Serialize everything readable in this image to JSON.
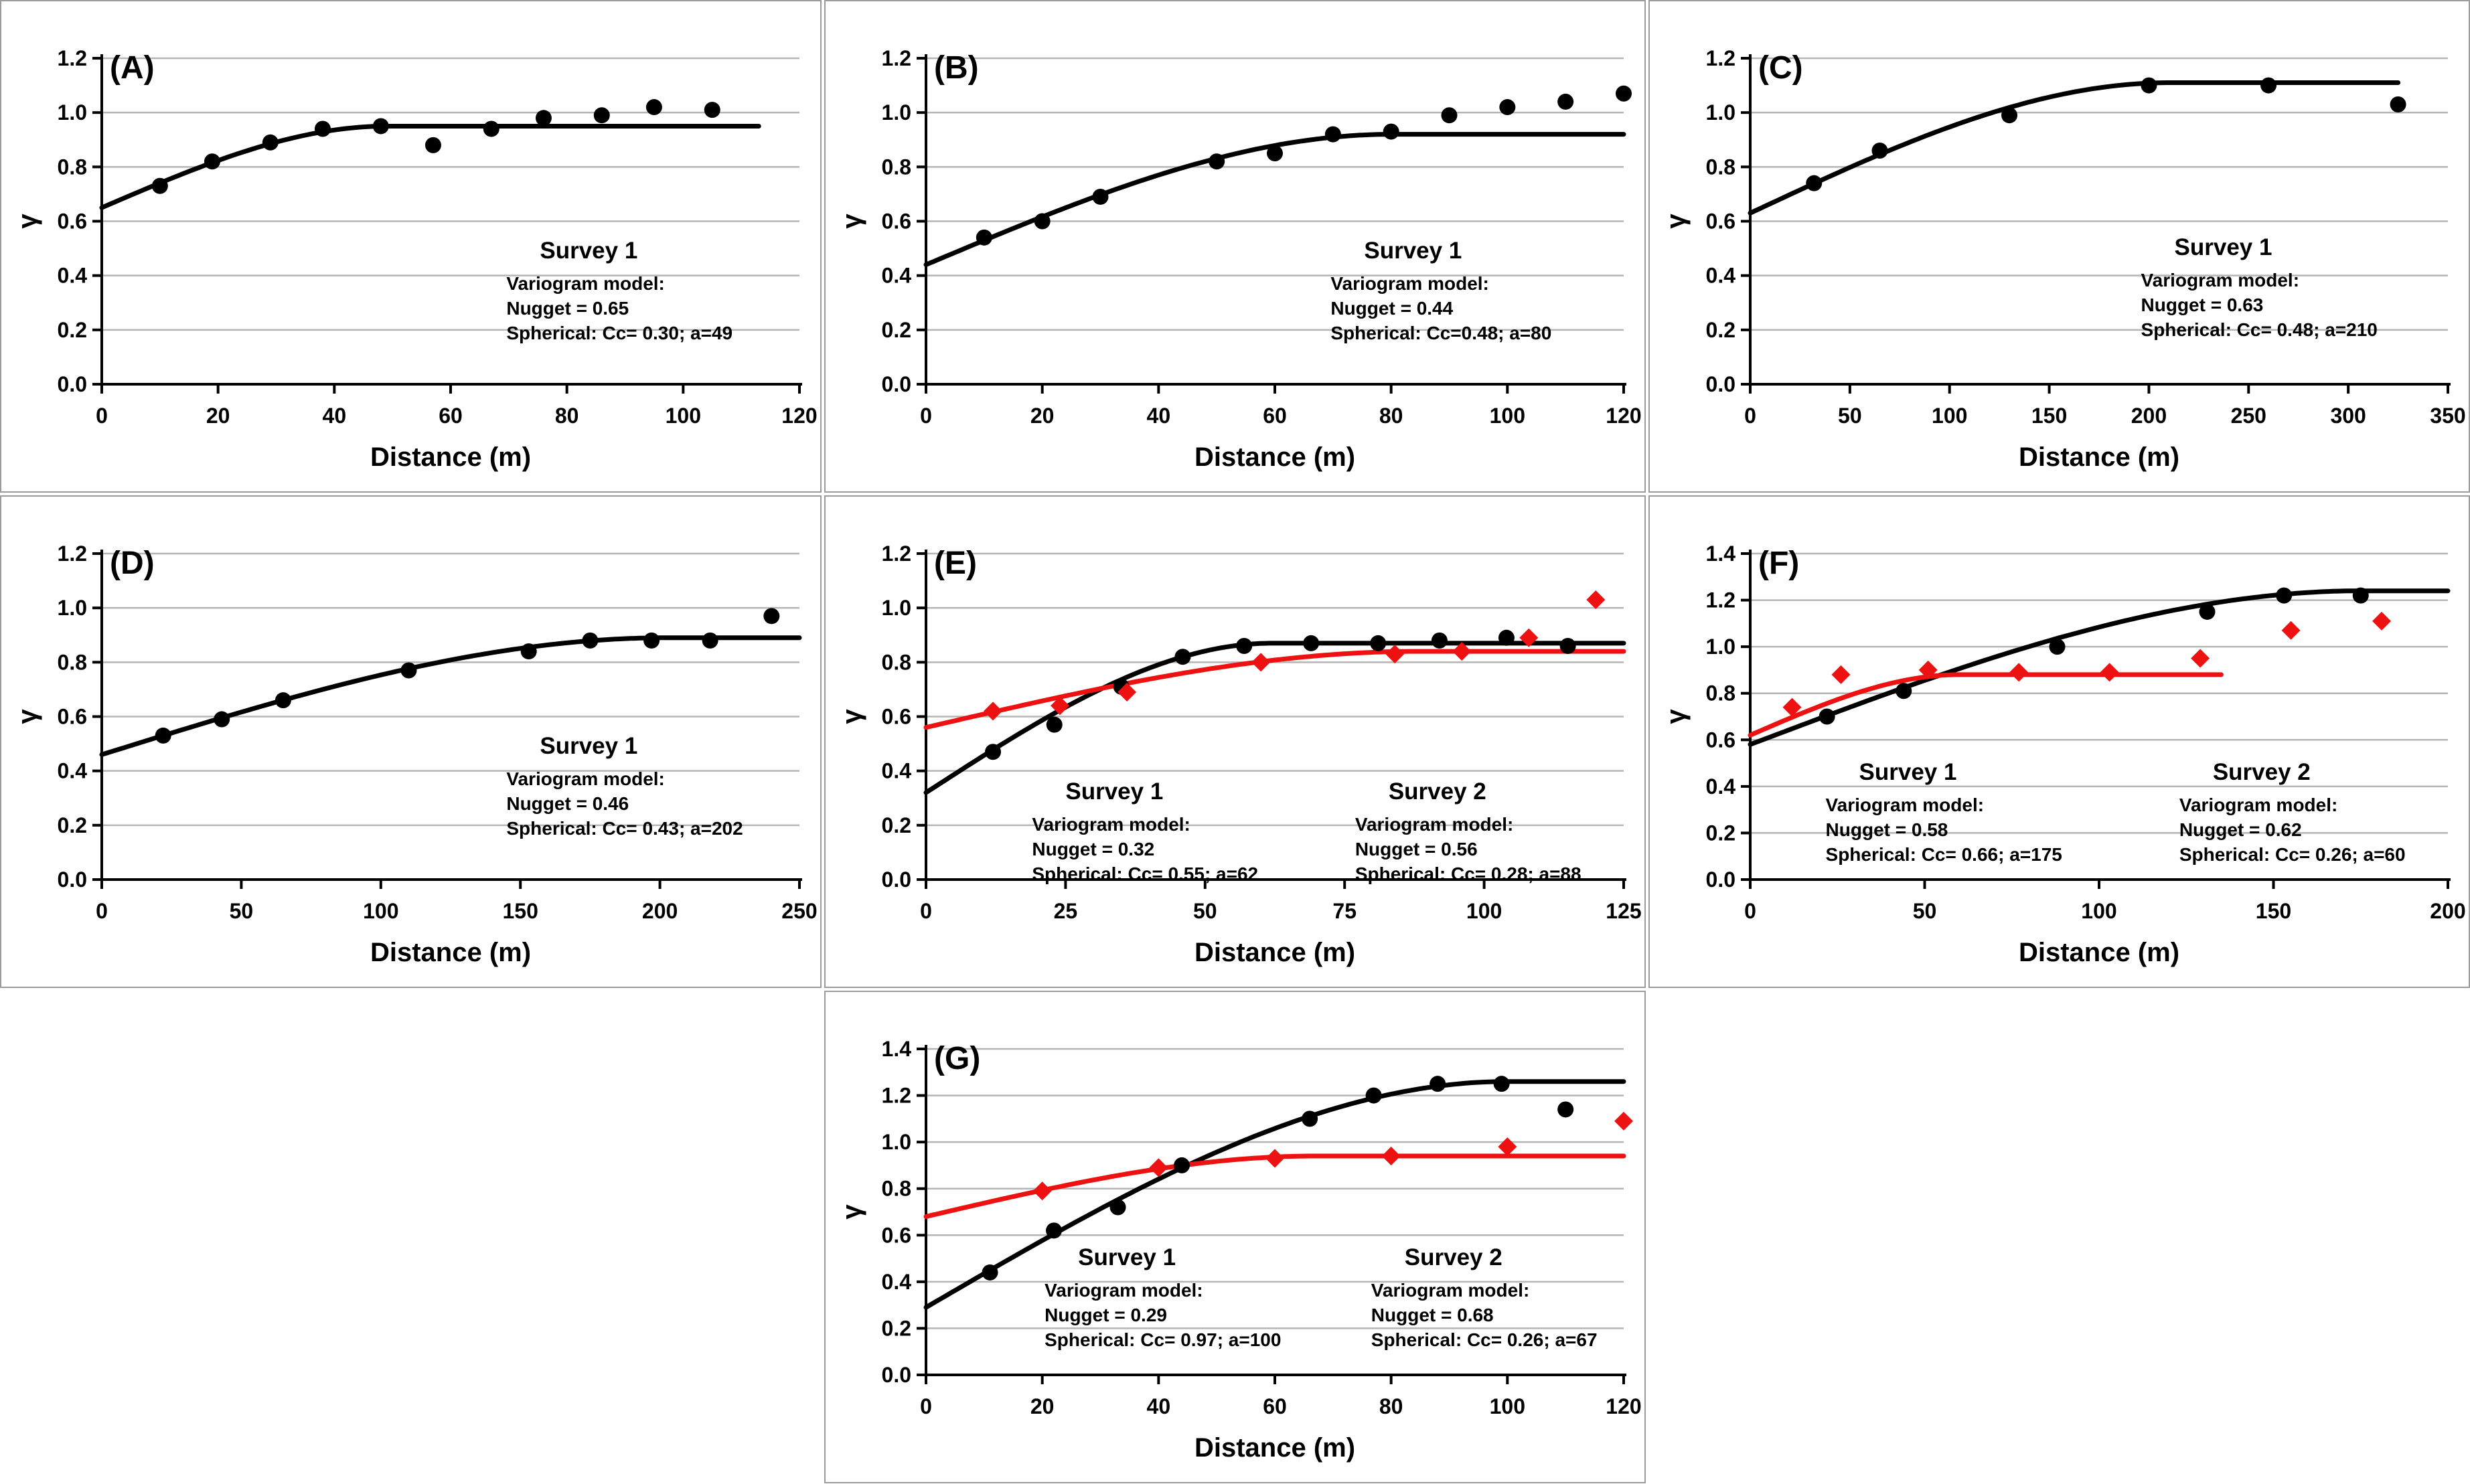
{
  "figure": {
    "background": "#ffffff",
    "panel_border_color": "#9b9b9b",
    "grid_color": "#b5b5b5",
    "axis_color": "#000000",
    "series_black": "#000000",
    "series_red": "#ee1111"
  },
  "chart_data": {
    "type": "scatter",
    "note": "variogram panels, spherical models; grid on (horizontal only)",
    "panels": [
      {
        "id": "a",
        "label": "(A)",
        "row": 1,
        "col": 1,
        "xlabel": "Distance (m)",
        "ylabel": "γ",
        "xlim": [
          0,
          120
        ],
        "ylim": [
          0,
          1.2
        ],
        "xticklabels": [
          "0",
          "20",
          "40",
          "60",
          "80",
          "100",
          "120"
        ],
        "yticklabels": [
          "0.0",
          "0.2",
          "0.4",
          "0.6",
          "0.8",
          "1.0",
          "1.2"
        ],
        "series": [
          {
            "name": "Survey 1",
            "color": "#000000",
            "marker": "circle",
            "model": {
              "nugget": 0.65,
              "cc": 0.3,
              "a": 49,
              "curve_end": 113
            },
            "points": [
              [
                10,
                0.73
              ],
              [
                19,
                0.82
              ],
              [
                29,
                0.89
              ],
              [
                38,
                0.94
              ],
              [
                48,
                0.95
              ],
              [
                57,
                0.88
              ],
              [
                67,
                0.94
              ],
              [
                76,
                0.98
              ],
              [
                86,
                0.99
              ],
              [
                95,
                1.02
              ],
              [
                105,
                1.01
              ]
            ]
          }
        ],
        "annotations": [
          {
            "title": "Survey 1",
            "lines": [
              "Variogram model:",
              "Nugget = 0.65",
              "Spherical: Cc= 0.30; a=49"
            ],
            "left": 0.58,
            "top": 0.55
          }
        ]
      },
      {
        "id": "b",
        "label": "(B)",
        "row": 1,
        "col": 2,
        "xlabel": "Distance (m)",
        "ylabel": "γ",
        "xlim": [
          0,
          120
        ],
        "ylim": [
          0,
          1.2
        ],
        "xticklabels": [
          "0",
          "20",
          "40",
          "60",
          "80",
          "100",
          "120"
        ],
        "yticklabels": [
          "0.0",
          "0.2",
          "0.4",
          "0.6",
          "0.8",
          "1.0",
          "1.2"
        ],
        "series": [
          {
            "name": "Survey 1",
            "color": "#000000",
            "marker": "circle",
            "model": {
              "nugget": 0.44,
              "cc": 0.48,
              "a": 80,
              "curve_end": 120
            },
            "points": [
              [
                10,
                0.54
              ],
              [
                20,
                0.6
              ],
              [
                30,
                0.69
              ],
              [
                50,
                0.82
              ],
              [
                60,
                0.85
              ],
              [
                70,
                0.92
              ],
              [
                80,
                0.93
              ],
              [
                90,
                0.99
              ],
              [
                100,
                1.02
              ],
              [
                110,
                1.04
              ],
              [
                120,
                1.07
              ]
            ]
          }
        ],
        "annotations": [
          {
            "title": "Survey 1",
            "lines": [
              "Variogram model:",
              "Nugget = 0.44",
              "Spherical: Cc=0.48; a=80"
            ],
            "left": 0.58,
            "top": 0.55
          }
        ]
      },
      {
        "id": "c",
        "label": "(C)",
        "row": 1,
        "col": 3,
        "xlabel": "Distance (m)",
        "ylabel": "γ",
        "xlim": [
          0,
          350
        ],
        "ylim": [
          0,
          1.2
        ],
        "xticklabels": [
          "0",
          "50",
          "100",
          "150",
          "200",
          "250",
          "300",
          "350"
        ],
        "yticklabels": [
          "0.0",
          "0.2",
          "0.4",
          "0.6",
          "0.8",
          "1.0",
          "1.2"
        ],
        "series": [
          {
            "name": "Survey 1",
            "color": "#000000",
            "marker": "circle",
            "model": {
              "nugget": 0.63,
              "cc": 0.48,
              "a": 210,
              "curve_end": 325
            },
            "points": [
              [
                32,
                0.74
              ],
              [
                65,
                0.86
              ],
              [
                130,
                0.99
              ],
              [
                200,
                1.1
              ],
              [
                260,
                1.1
              ],
              [
                325,
                1.03
              ]
            ]
          }
        ],
        "annotations": [
          {
            "title": "Survey 1",
            "lines": [
              "Variogram model:",
              "Nugget = 0.63",
              "Spherical: Cc= 0.48; a=210"
            ],
            "left": 0.56,
            "top": 0.54
          }
        ]
      },
      {
        "id": "d",
        "label": "(D)",
        "row": 2,
        "col": 1,
        "xlabel": "Distance (m)",
        "ylabel": "γ",
        "xlim": [
          0,
          250
        ],
        "ylim": [
          0,
          1.2
        ],
        "xticklabels": [
          "0",
          "50",
          "100",
          "150",
          "200",
          "250"
        ],
        "yticklabels": [
          "0.0",
          "0.2",
          "0.4",
          "0.6",
          "0.8",
          "1.0",
          "1.2"
        ],
        "series": [
          {
            "name": "Survey 1",
            "color": "#000000",
            "marker": "circle",
            "model": {
              "nugget": 0.46,
              "cc": 0.43,
              "a": 202,
              "curve_end": 250
            },
            "points": [
              [
                22,
                0.53
              ],
              [
                43,
                0.59
              ],
              [
                65,
                0.66
              ],
              [
                110,
                0.77
              ],
              [
                153,
                0.84
              ],
              [
                175,
                0.88
              ],
              [
                197,
                0.88
              ],
              [
                218,
                0.88
              ],
              [
                240,
                0.97
              ]
            ]
          }
        ],
        "annotations": [
          {
            "title": "Survey 1",
            "lines": [
              "Variogram model:",
              "Nugget = 0.46",
              "Spherical: Cc= 0.43; a=202"
            ],
            "left": 0.58,
            "top": 0.55
          }
        ]
      },
      {
        "id": "e",
        "label": "(E)",
        "row": 2,
        "col": 2,
        "xlabel": "Distance (m)",
        "ylabel": "γ",
        "xlim": [
          0,
          125
        ],
        "ylim": [
          0,
          1.2
        ],
        "xticklabels": [
          "0",
          "25",
          "50",
          "75",
          "100",
          "125"
        ],
        "yticklabels": [
          "0.0",
          "0.2",
          "0.4",
          "0.6",
          "0.8",
          "1.0",
          "1.2"
        ],
        "series": [
          {
            "name": "Survey 1",
            "color": "#000000",
            "marker": "circle",
            "model": {
              "nugget": 0.32,
              "cc": 0.55,
              "a": 62,
              "curve_end": 125
            },
            "points": [
              [
                12,
                0.47
              ],
              [
                23,
                0.57
              ],
              [
                35,
                0.71
              ],
              [
                46,
                0.82
              ],
              [
                57,
                0.86
              ],
              [
                69,
                0.87
              ],
              [
                81,
                0.87
              ],
              [
                92,
                0.88
              ],
              [
                104,
                0.89
              ],
              [
                115,
                0.86
              ]
            ]
          },
          {
            "name": "Survey 2",
            "color": "#ee1111",
            "marker": "diamond",
            "model": {
              "nugget": 0.56,
              "cc": 0.28,
              "a": 88,
              "curve_end": 125
            },
            "points": [
              [
                12,
                0.62
              ],
              [
                24,
                0.64
              ],
              [
                36,
                0.69
              ],
              [
                60,
                0.8
              ],
              [
                84,
                0.83
              ],
              [
                96,
                0.84
              ],
              [
                108,
                0.89
              ],
              [
                120,
                1.03
              ]
            ]
          }
        ],
        "annotations": [
          {
            "title": "Survey 1",
            "lines": [
              "Variogram model:",
              "Nugget = 0.32",
              "Spherical: Cc= 0.55; a=62"
            ],
            "left": 0.152,
            "top": 0.69
          },
          {
            "title": "Survey 2",
            "lines": [
              "Variogram model:",
              "Nugget = 0.56",
              "Spherical: Cc= 0.28; a=88"
            ],
            "left": 0.615,
            "top": 0.69
          }
        ]
      },
      {
        "id": "f",
        "label": "(F)",
        "row": 2,
        "col": 3,
        "xlabel": "Distance (m)",
        "ylabel": "γ",
        "xlim": [
          0,
          200
        ],
        "ylim": [
          0,
          1.4
        ],
        "xticklabels": [
          "0",
          "50",
          "100",
          "150",
          "200"
        ],
        "yticklabels": [
          "0.0",
          "0.2",
          "0.4",
          "0.6",
          "0.8",
          "1.0",
          "1.2",
          "1.4"
        ],
        "series": [
          {
            "name": "Survey 1",
            "color": "#000000",
            "marker": "circle",
            "model": {
              "nugget": 0.58,
              "cc": 0.66,
              "a": 175,
              "curve_end": 200
            },
            "points": [
              [
                22,
                0.7
              ],
              [
                44,
                0.81
              ],
              [
                88,
                1.0
              ],
              [
                131,
                1.15
              ],
              [
                153,
                1.22
              ],
              [
                175,
                1.22
              ]
            ]
          },
          {
            "name": "Survey 2",
            "color": "#ee1111",
            "marker": "diamond",
            "model": {
              "nugget": 0.62,
              "cc": 0.26,
              "a": 60,
              "curve_end": 135
            },
            "points": [
              [
                12,
                0.74
              ],
              [
                26,
                0.88
              ],
              [
                51,
                0.9
              ],
              [
                77,
                0.89
              ],
              [
                103,
                0.89
              ],
              [
                129,
                0.95
              ],
              [
                155,
                1.07
              ],
              [
                181,
                1.11
              ]
            ]
          }
        ],
        "annotations": [
          {
            "title": "Survey 1",
            "lines": [
              "Variogram model:",
              "Nugget = 0.58",
              "Spherical: Cc= 0.66; a=175"
            ],
            "left": 0.108,
            "top": 0.63
          },
          {
            "title": "Survey 2",
            "lines": [
              "Variogram model:",
              "Nugget = 0.62",
              "Spherical: Cc= 0.26; a=60"
            ],
            "left": 0.615,
            "top": 0.63
          }
        ]
      },
      {
        "id": "g",
        "label": "(G)",
        "row": 3,
        "col": 2,
        "xlabel": "Distance (m)",
        "ylabel": "γ",
        "xlim": [
          0,
          120
        ],
        "ylim": [
          0,
          1.4
        ],
        "xticklabels": [
          "0",
          "20",
          "40",
          "60",
          "80",
          "100",
          "120"
        ],
        "yticklabels": [
          "0.0",
          "0.2",
          "0.4",
          "0.6",
          "0.8",
          "1.0",
          "1.2",
          "1.4"
        ],
        "series": [
          {
            "name": "Survey 1",
            "color": "#000000",
            "marker": "circle",
            "model": {
              "nugget": 0.29,
              "cc": 0.97,
              "a": 100,
              "curve_end": 120
            },
            "points": [
              [
                11,
                0.44
              ],
              [
                22,
                0.62
              ],
              [
                33,
                0.72
              ],
              [
                44,
                0.9
              ],
              [
                66,
                1.1
              ],
              [
                77,
                1.2
              ],
              [
                88,
                1.25
              ],
              [
                99,
                1.25
              ],
              [
                110,
                1.14
              ]
            ]
          },
          {
            "name": "Survey 2",
            "color": "#ee1111",
            "marker": "diamond",
            "model": {
              "nugget": 0.68,
              "cc": 0.26,
              "a": 67,
              "curve_end": 120
            },
            "points": [
              [
                20,
                0.79
              ],
              [
                40,
                0.89
              ],
              [
                60,
                0.93
              ],
              [
                80,
                0.94
              ],
              [
                100,
                0.98
              ],
              [
                120,
                1.09
              ]
            ]
          }
        ],
        "annotations": [
          {
            "title": "Survey 1",
            "lines": [
              "Variogram model:",
              "Nugget = 0.29",
              "Spherical: Cc= 0.97; a=100"
            ],
            "left": 0.17,
            "top": 0.6
          },
          {
            "title": "Survey 2",
            "lines": [
              "Variogram model:",
              "Nugget = 0.68",
              "Spherical: Cc= 0.26; a=67"
            ],
            "left": 0.638,
            "top": 0.6
          }
        ]
      }
    ]
  }
}
